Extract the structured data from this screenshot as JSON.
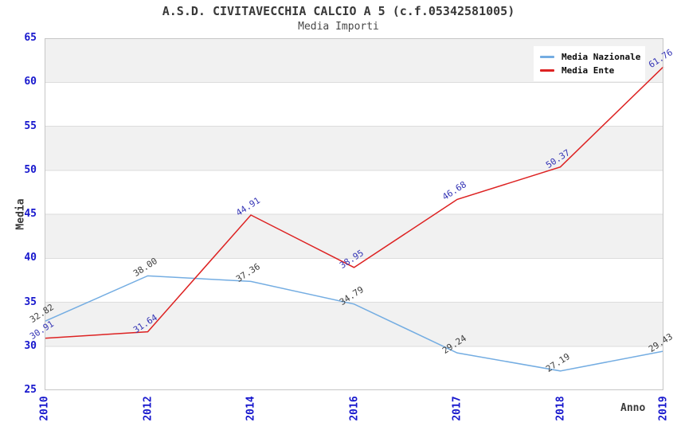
{
  "header": {
    "title": "A.S.D. CIVITAVECCHIA CALCIO A 5 (c.f.05342581005)",
    "subtitle": "Media Importi"
  },
  "legend": {
    "items": [
      {
        "label": "Media Nazionale",
        "color": "#74ade2"
      },
      {
        "label": "Media Ente",
        "color": "#dd2222"
      }
    ]
  },
  "chart_data": {
    "type": "line",
    "title": "A.S.D. CIVITAVECCHIA CALCIO A 5 (c.f.05342581005)",
    "subtitle": "Media Importi",
    "xlabel": "Anno",
    "ylabel": "Media",
    "categories": [
      "2010",
      "2012",
      "2014",
      "2016",
      "2017",
      "2018",
      "2019"
    ],
    "series": [
      {
        "name": "Media Nazionale",
        "color": "#74ade2",
        "label_color": "#3d3d3d",
        "values": [
          32.82,
          38.0,
          37.36,
          34.79,
          29.24,
          27.19,
          29.43
        ]
      },
      {
        "name": "Media Ente",
        "color": "#dd2222",
        "label_color": "#3434b5",
        "values": [
          30.91,
          31.64,
          44.91,
          38.95,
          46.68,
          50.37,
          61.76
        ]
      }
    ],
    "ylim": [
      25,
      65
    ],
    "yticks": [
      65,
      60,
      55,
      50,
      45,
      40,
      35,
      30,
      25
    ],
    "grid": "horizontal-bands",
    "band_color": "#f1f1f1",
    "gridline_color": "#dcdcdc",
    "border_color": "#c6c6c6",
    "tick_color": "#1717cd",
    "legend_position": "top-right"
  }
}
